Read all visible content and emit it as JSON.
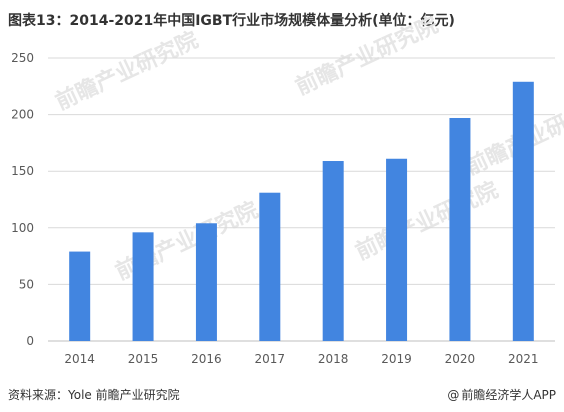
{
  "title": "图表13：2014-2021年中国IGBT行业市场规模体量分析(单位：亿元)",
  "footer": {
    "source": "资料来源：Yole 前瞻产业研究院",
    "credit": "前瞻经济学人APP",
    "credit_icon": "at-sign-icon"
  },
  "watermark": {
    "text": "前瞻产业研究院"
  },
  "colors": {
    "bar": "#4285e0",
    "grid": "#d9d9d9",
    "axis": "#bfbfbf",
    "tick_text": "#595959",
    "watermark": "#e6e6e6"
  },
  "chart_data": {
    "type": "bar",
    "title": "图表13：2014-2021年中国IGBT行业市场规模体量分析(单位：亿元)",
    "xlabel": "",
    "ylabel": "",
    "categories": [
      "2014",
      "2015",
      "2016",
      "2017",
      "2018",
      "2019",
      "2020",
      "2021"
    ],
    "values": [
      79,
      96,
      104,
      131,
      159,
      161,
      197,
      229
    ],
    "ylim": [
      0,
      250
    ],
    "yticks": [
      0,
      50,
      100,
      150,
      200,
      250
    ],
    "grid": true,
    "legend": "none"
  }
}
